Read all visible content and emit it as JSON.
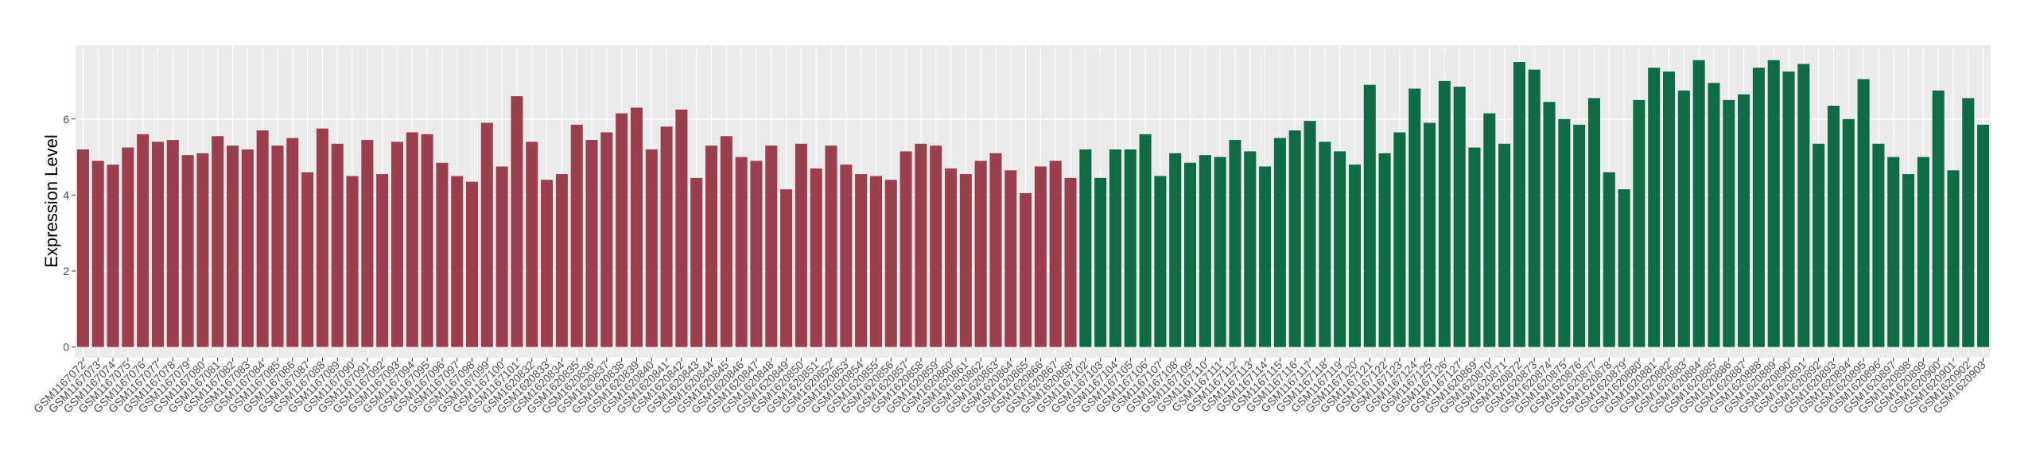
{
  "chart_data": {
    "type": "bar",
    "y_label": "Expression Level",
    "categories": [
      "GSM1167072",
      "GSM1167073",
      "GSM1167074",
      "GSM1167075",
      "GSM1167076",
      "GSM1167077",
      "GSM1167078",
      "GSM1167079",
      "GSM1167080",
      "GSM1167081",
      "GSM1167082",
      "GSM1167083",
      "GSM1167084",
      "GSM1167085",
      "GSM1167086",
      "GSM1167087",
      "GSM1167088",
      "GSM1167089",
      "GSM1167090",
      "GSM1167091",
      "GSM1167092",
      "GSM1167093",
      "GSM1167094",
      "GSM1167095",
      "GSM1167096",
      "GSM1167097",
      "GSM1167098",
      "GSM1167099",
      "GSM1167100",
      "GSM1167101",
      "GSM1620832",
      "GSM1620833",
      "GSM1620834",
      "GSM1620835",
      "GSM1620836",
      "GSM1620837",
      "GSM1620838",
      "GSM1620839",
      "GSM1620840",
      "GSM1620841",
      "GSM1620842",
      "GSM1620843",
      "GSM1620844",
      "GSM1620845",
      "GSM1620846",
      "GSM1620847",
      "GSM1620848",
      "GSM1620849",
      "GSM1620850",
      "GSM1620851",
      "GSM1620852",
      "GSM1620853",
      "GSM1620854",
      "GSM1620855",
      "GSM1620856",
      "GSM1620857",
      "GSM1620858",
      "GSM1620859",
      "GSM1620860",
      "GSM1620861",
      "GSM1620862",
      "GSM1620863",
      "GSM1620864",
      "GSM1620865",
      "GSM1620866",
      "GSM1620867",
      "GSM1620868",
      "GSM1167102",
      "GSM1167103",
      "GSM1167104",
      "GSM1167105",
      "GSM1167106",
      "GSM1167107",
      "GSM1167108",
      "GSM1167109",
      "GSM1167110",
      "GSM1167111",
      "GSM1167112",
      "GSM1167113",
      "GSM1167114",
      "GSM1167115",
      "GSM1167116",
      "GSM1167117",
      "GSM1167118",
      "GSM1167119",
      "GSM1167120",
      "GSM1167121",
      "GSM1167122",
      "GSM1167123",
      "GSM1167124",
      "GSM1167125",
      "GSM1167126",
      "GSM1167127",
      "GSM1620869",
      "GSM1620870",
      "GSM1620871",
      "GSM1620872",
      "GSM1620873",
      "GSM1620874",
      "GSM1620875",
      "GSM1620876",
      "GSM1620877",
      "GSM1620878",
      "GSM1620879",
      "GSM1620880",
      "GSM1620881",
      "GSM1620882",
      "GSM1620883",
      "GSM1620884",
      "GSM1620885",
      "GSM1620886",
      "GSM1620887",
      "GSM1620888",
      "GSM1620889",
      "GSM1620890",
      "GSM1620891",
      "GSM1620892",
      "GSM1620893",
      "GSM1620894",
      "GSM1620895",
      "GSM1620896",
      "GSM1620897",
      "GSM1620898",
      "GSM1620899",
      "GSM1620900",
      "GSM1620901",
      "GSM1620902",
      "GSM1620903"
    ],
    "values": [
      5.2,
      4.9,
      4.8,
      5.25,
      5.6,
      5.4,
      5.45,
      5.05,
      5.1,
      5.55,
      5.3,
      5.2,
      5.7,
      5.3,
      5.5,
      4.6,
      5.75,
      5.35,
      4.5,
      5.45,
      4.55,
      5.4,
      5.65,
      5.6,
      4.85,
      4.5,
      4.35,
      5.9,
      4.75,
      6.6,
      5.4,
      4.4,
      4.55,
      5.85,
      5.45,
      5.65,
      6.15,
      6.3,
      5.2,
      5.8,
      6.25,
      4.45,
      5.3,
      5.55,
      5.0,
      4.9,
      5.3,
      4.15,
      5.35,
      4.7,
      5.3,
      4.8,
      4.55,
      4.5,
      4.4,
      5.15,
      5.35,
      5.3,
      4.7,
      4.55,
      4.9,
      5.1,
      4.65,
      4.05,
      4.75,
      4.9,
      4.45,
      5.2,
      4.45,
      5.2,
      5.2,
      5.6,
      4.5,
      5.1,
      4.85,
      5.05,
      5.0,
      5.45,
      5.15,
      4.75,
      5.5,
      5.7,
      5.95,
      5.4,
      5.15,
      4.8,
      6.9,
      5.1,
      5.65,
      6.8,
      5.9,
      7.0,
      6.85,
      5.25,
      6.15,
      5.35,
      7.5,
      7.3,
      6.45,
      6.0,
      5.85,
      6.55,
      4.6,
      4.15,
      6.5,
      7.35,
      7.25,
      6.75,
      7.55,
      6.95,
      6.5,
      6.65,
      7.35,
      7.55,
      7.25,
      7.45,
      5.35,
      6.35,
      6.0,
      7.05,
      5.35,
      5.0,
      4.55,
      5.0,
      6.75,
      4.65,
      6.55,
      5.85
    ],
    "colors": [
      "#9b3f4f",
      "#9b3f4f",
      "#9b3f4f",
      "#9b3f4f",
      "#9b3f4f",
      "#9b3f4f",
      "#9b3f4f",
      "#9b3f4f",
      "#9b3f4f",
      "#9b3f4f",
      "#9b3f4f",
      "#9b3f4f",
      "#9b3f4f",
      "#9b3f4f",
      "#9b3f4f",
      "#9b3f4f",
      "#9b3f4f",
      "#9b3f4f",
      "#9b3f4f",
      "#9b3f4f",
      "#9b3f4f",
      "#9b3f4f",
      "#9b3f4f",
      "#9b3f4f",
      "#9b3f4f",
      "#9b3f4f",
      "#9b3f4f",
      "#9b3f4f",
      "#9b3f4f",
      "#9b3f4f",
      "#9b3f4f",
      "#9b3f4f",
      "#9b3f4f",
      "#9b3f4f",
      "#9b3f4f",
      "#9b3f4f",
      "#9b3f4f",
      "#9b3f4f",
      "#9b3f4f",
      "#9b3f4f",
      "#9b3f4f",
      "#9b3f4f",
      "#9b3f4f",
      "#9b3f4f",
      "#9b3f4f",
      "#9b3f4f",
      "#9b3f4f",
      "#9b3f4f",
      "#9b3f4f",
      "#9b3f4f",
      "#9b3f4f",
      "#9b3f4f",
      "#9b3f4f",
      "#9b3f4f",
      "#9b3f4f",
      "#9b3f4f",
      "#9b3f4f",
      "#9b3f4f",
      "#9b3f4f",
      "#9b3f4f",
      "#9b3f4f",
      "#9b3f4f",
      "#9b3f4f",
      "#9b3f4f",
      "#9b3f4f",
      "#9b3f4f",
      "#9b3f4f",
      "#0d6b45",
      "#0d6b45",
      "#0d6b45",
      "#0d6b45",
      "#0d6b45",
      "#0d6b45",
      "#0d6b45",
      "#0d6b45",
      "#0d6b45",
      "#0d6b45",
      "#0d6b45",
      "#0d6b45",
      "#0d6b45",
      "#0d6b45",
      "#0d6b45",
      "#0d6b45",
      "#0d6b45",
      "#0d6b45",
      "#0d6b45",
      "#0d6b45",
      "#0d6b45",
      "#0d6b45",
      "#0d6b45",
      "#0d6b45",
      "#0d6b45",
      "#0d6b45",
      "#0d6b45",
      "#0d6b45",
      "#0d6b45",
      "#0d6b45",
      "#0d6b45",
      "#0d6b45",
      "#0d6b45",
      "#0d6b45",
      "#0d6b45",
      "#0d6b45",
      "#0d6b45",
      "#0d6b45",
      "#0d6b45",
      "#0d6b45",
      "#0d6b45",
      "#0d6b45",
      "#0d6b45",
      "#0d6b45",
      "#0d6b45",
      "#0d6b45",
      "#0d6b45",
      "#0d6b45",
      "#0d6b45",
      "#0d6b45",
      "#0d6b45",
      "#0d6b45",
      "#0d6b45",
      "#0d6b45",
      "#0d6b45",
      "#0d6b45",
      "#0d6b45",
      "#0d6b45",
      "#0d6b45",
      "#0d6b45",
      "#0d6b45"
    ],
    "ylim": [
      -0.28,
      7.94
    ],
    "yticks": [
      0,
      2,
      4,
      6
    ],
    "grid": true
  }
}
